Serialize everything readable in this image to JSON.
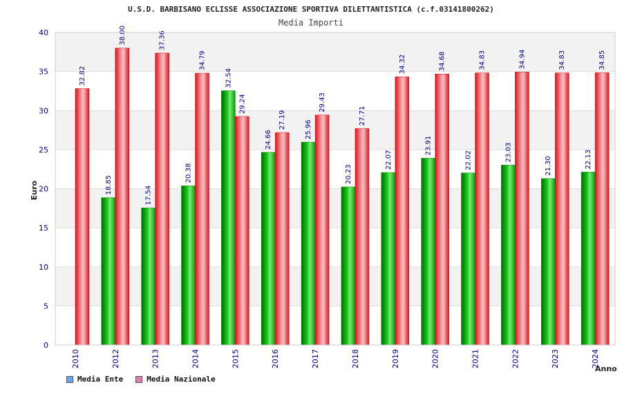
{
  "chart_data": {
    "type": "bar",
    "title": "U.S.D. BARBISANO ECLISSE ASSOCIAZIONE SPORTIVA DILETTANTISTICA (c.f.03141800262)",
    "subtitle": "Media Importi",
    "xlabel": "Anno",
    "ylabel": "Euro",
    "ylim": [
      0,
      40
    ],
    "yticks": [
      0,
      5,
      10,
      15,
      20,
      25,
      30,
      35,
      40
    ],
    "grid": true,
    "legend_placement": "bottom-left",
    "categories": [
      "2010",
      "2012",
      "2013",
      "2014",
      "2015",
      "2016",
      "2017",
      "2018",
      "2019",
      "2020",
      "2021",
      "2022",
      "2023",
      "2024"
    ],
    "series": [
      {
        "name": "Media Ente",
        "color": "#00c000",
        "values": [
          null,
          18.85,
          17.54,
          20.38,
          32.54,
          24.66,
          25.96,
          20.23,
          22.07,
          23.91,
          22.02,
          23.03,
          21.3,
          22.13
        ],
        "labels": [
          "",
          "18.85",
          "17.54",
          "20.38",
          "32.54",
          "24.66",
          "25.96",
          "20.23",
          "22.07",
          "23.91",
          "22.02",
          "23.03",
          "21.30",
          "22.13"
        ]
      },
      {
        "name": "Media Nazionale",
        "color": "#e8202a",
        "values": [
          32.82,
          38.0,
          37.36,
          34.79,
          29.24,
          27.19,
          29.43,
          27.71,
          34.32,
          34.68,
          34.83,
          34.94,
          34.83,
          34.85
        ],
        "labels": [
          "32.82",
          "38.00",
          "37.36",
          "34.79",
          "29.24",
          "27.19",
          "29.43",
          "27.71",
          "34.32",
          "34.68",
          "34.83",
          "34.94",
          "34.83",
          "34.85"
        ]
      }
    ],
    "legend_swatch_colors": [
      "#6aa6e8",
      "#e07ab0"
    ]
  }
}
